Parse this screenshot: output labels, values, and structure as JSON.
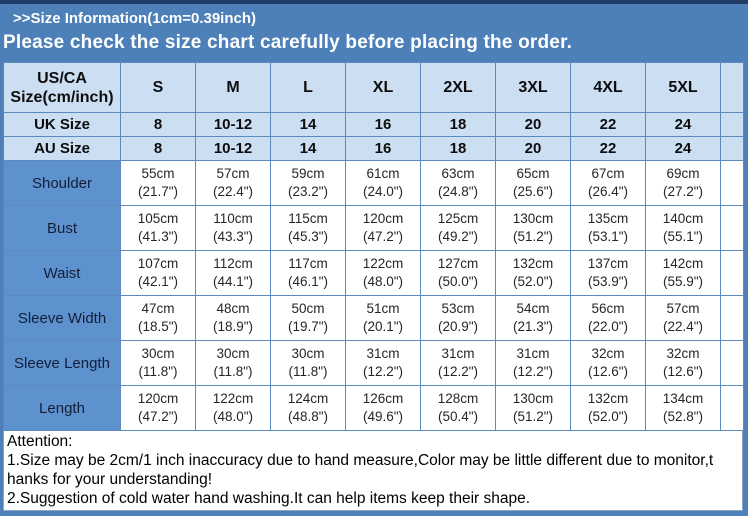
{
  "title_bar": {
    "text": ">>Size Information(1cm=0.39inch)"
  },
  "banner": {
    "text": "Please check the size chart carefully before placing the order."
  },
  "size_table": {
    "corner_header": {
      "line1": "US/CA",
      "line2": "Size(cm/inch)"
    },
    "size_headers": [
      "S",
      "M",
      "L",
      "XL",
      "2XL",
      "3XL",
      "4XL",
      "5XL"
    ],
    "uk_row": {
      "label": "UK Size",
      "values": [
        "8",
        "10-12",
        "14",
        "16",
        "18",
        "20",
        "22",
        "24"
      ]
    },
    "au_row": {
      "label": "AU Size",
      "values": [
        "8",
        "10-12",
        "14",
        "16",
        "18",
        "20",
        "22",
        "24"
      ]
    },
    "measurement_rows": [
      {
        "label": "Shoulder",
        "cm": [
          "55cm",
          "57cm",
          "59cm",
          "61cm",
          "63cm",
          "65cm",
          "67cm",
          "69cm"
        ],
        "inch": [
          "(21.7\")",
          "(22.4\")",
          "(23.2\")",
          "(24.0\")",
          "(24.8\")",
          "(25.6\")",
          "(26.4\")",
          "(27.2\")"
        ]
      },
      {
        "label": "Bust",
        "cm": [
          "105cm",
          "110cm",
          "115cm",
          "120cm",
          "125cm",
          "130cm",
          "135cm",
          "140cm"
        ],
        "inch": [
          "(41.3\")",
          "(43.3\")",
          "(45.3\")",
          "(47.2\")",
          "(49.2\")",
          "(51.2\")",
          "(53.1\")",
          "(55.1\")"
        ]
      },
      {
        "label": "Waist",
        "cm": [
          "107cm",
          "112cm",
          "117cm",
          "122cm",
          "127cm",
          "132cm",
          "137cm",
          "142cm"
        ],
        "inch": [
          "(42.1\")",
          "(44.1\")",
          "(46.1\")",
          "(48.0\")",
          "(50.0\")",
          "(52.0\")",
          "(53.9\")",
          "(55.9\")"
        ]
      },
      {
        "label": "Sleeve Width",
        "cm": [
          "47cm",
          "48cm",
          "50cm",
          "51cm",
          "53cm",
          "54cm",
          "56cm",
          "57cm"
        ],
        "inch": [
          "(18.5\")",
          "(18.9\")",
          "(19.7\")",
          "(20.1\")",
          "(20.9\")",
          "(21.3\")",
          "(22.0\")",
          "(22.4\")"
        ]
      },
      {
        "label": "Sleeve Length",
        "cm": [
          "30cm",
          "30cm",
          "30cm",
          "31cm",
          "31cm",
          "31cm",
          "32cm",
          "32cm"
        ],
        "inch": [
          "(11.8\")",
          "(11.8\")",
          "(11.8\")",
          "(12.2\")",
          "(12.2\")",
          "(12.2\")",
          "(12.6\")",
          "(12.6\")"
        ]
      },
      {
        "label": "Length",
        "cm": [
          "120cm",
          "122cm",
          "124cm",
          "126cm",
          "128cm",
          "130cm",
          "132cm",
          "134cm"
        ],
        "inch": [
          "(47.2\")",
          "(48.0\")",
          "(48.8\")",
          "(49.6\")",
          "(50.4\")",
          "(51.2\")",
          "(52.0\")",
          "(52.8\")"
        ]
      }
    ]
  },
  "attention": {
    "heading": "Attention:",
    "lines": [
      "1.Size may be 2cm/1 inch inaccuracy due to hand measure,Color may be little different due to monitor,t",
      "hanks for your understanding!",
      "2.Suggestion of cold water hand washing.It can help items keep their shape."
    ]
  },
  "colors": {
    "page_blue": "#4d80b8",
    "top_border_navy": "#1e3c66",
    "header_light_blue": "#cbdef2",
    "label_blue": "#5e92cf",
    "border_blue": "#5d8abc",
    "cell_white": "#ffffff",
    "banner_text": "#ffffff"
  }
}
